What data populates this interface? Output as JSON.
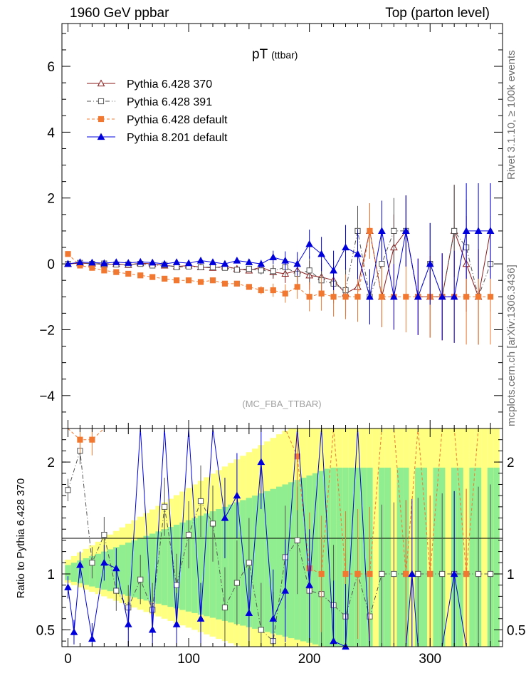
{
  "header": {
    "left": "1960 GeV ppbar",
    "right": "Top (parton level)"
  },
  "side_labels": {
    "rivet": "Rivet 3.1.10, ≥ 100k events",
    "mcplots": "mcplots.cern.ch [arXiv:1306.3436]"
  },
  "chart_data": [
    {
      "type": "line",
      "panel": "main",
      "title": "pT",
      "title_suffix": "(ttbar)",
      "analysis_label": "(MC_FBA_TTBAR)",
      "xlabel": "",
      "ylabel": "",
      "xlim": [
        -5,
        360
      ],
      "ylim": [
        -5,
        7.3
      ],
      "yticks": [
        6,
        4,
        2,
        0,
        -2,
        -4
      ],
      "ytick_labels": [
        "6",
        "4",
        "2",
        "0",
        "−2",
        "−4"
      ],
      "legend_position": "top-left",
      "series": [
        {
          "name": "Pythia 6.428 370",
          "color": "#8b1a1a",
          "marker": "open-triangle",
          "x": [
            0,
            10,
            20,
            30,
            40,
            50,
            60,
            70,
            80,
            90,
            100,
            110,
            120,
            130,
            140,
            150,
            160,
            170,
            180,
            190,
            200,
            210,
            220,
            230,
            240,
            250,
            260,
            270,
            280,
            290,
            300,
            310,
            320,
            330,
            340,
            350
          ],
          "y": [
            0.0,
            0.02,
            0.01,
            -0.02,
            0.0,
            -0.03,
            0.02,
            0.0,
            -0.05,
            -0.08,
            -0.05,
            -0.1,
            -0.12,
            -0.08,
            -0.15,
            -0.2,
            -0.1,
            -0.25,
            -0.3,
            -0.2,
            -0.35,
            -0.4,
            -0.5,
            -0.9,
            -0.7,
            1.0,
            -1.0,
            0.5,
            1.0,
            -1.0,
            -1.0,
            -1.0,
            1.0,
            0.0,
            -1.0,
            1.0
          ]
        },
        {
          "name": "Pythia 6.428 391",
          "color": "#555555",
          "marker": "open-square",
          "x": [
            0,
            10,
            20,
            30,
            40,
            50,
            60,
            70,
            80,
            90,
            100,
            110,
            120,
            130,
            140,
            150,
            160,
            170,
            180,
            190,
            200,
            210,
            220,
            230,
            240,
            250,
            260,
            270,
            280,
            290,
            300,
            310,
            320,
            330,
            340,
            350
          ],
          "y": [
            0.0,
            0.03,
            0.0,
            0.01,
            -0.02,
            -0.02,
            0.0,
            -0.05,
            -0.03,
            -0.1,
            -0.08,
            -0.1,
            -0.1,
            -0.12,
            -0.18,
            -0.15,
            -0.2,
            -0.22,
            -0.1,
            -0.3,
            -0.2,
            -0.5,
            -0.6,
            -0.8,
            1.0,
            -1.0,
            0.0,
            1.0,
            1.0,
            -1.0,
            0.0,
            -1.0,
            1.0,
            0.5,
            -1.0,
            0.0
          ]
        },
        {
          "name": "Pythia 6.428 default",
          "color": "#f07830",
          "marker": "filled-square",
          "x": [
            0,
            10,
            20,
            30,
            40,
            50,
            60,
            70,
            80,
            90,
            100,
            110,
            120,
            130,
            140,
            150,
            160,
            170,
            180,
            190,
            200,
            210,
            220,
            230,
            240,
            250,
            260,
            270,
            280,
            290,
            300,
            310,
            320,
            330,
            340,
            350
          ],
          "y": [
            0.3,
            -0.05,
            -0.12,
            -0.2,
            -0.25,
            -0.3,
            -0.35,
            -0.4,
            -0.45,
            -0.5,
            -0.5,
            -0.55,
            -0.5,
            -0.6,
            -0.6,
            -0.7,
            -0.8,
            -0.8,
            -0.9,
            -0.7,
            -1.0,
            -0.9,
            -1.0,
            -1.0,
            -1.0,
            1.0,
            -1.0,
            -1.0,
            -1.0,
            -1.0,
            -1.0,
            -1.0,
            -1.0,
            -1.0,
            -1.0,
            -1.0
          ]
        },
        {
          "name": "Pythia 8.201 default",
          "color": "#0000dd",
          "marker": "filled-triangle",
          "x": [
            0,
            10,
            20,
            30,
            40,
            50,
            60,
            70,
            80,
            90,
            100,
            110,
            120,
            130,
            140,
            150,
            160,
            170,
            180,
            190,
            200,
            210,
            220,
            230,
            240,
            250,
            260,
            270,
            280,
            290,
            300,
            310,
            320,
            330,
            340,
            350
          ],
          "y": [
            0.0,
            0.05,
            0.04,
            0.02,
            0.05,
            0.03,
            0.06,
            0.04,
            0.0,
            0.05,
            0.02,
            0.1,
            0.05,
            0.0,
            0.1,
            0.05,
            0.0,
            0.2,
            0.1,
            0.0,
            0.6,
            0.3,
            -0.2,
            0.5,
            0.3,
            -1.0,
            1.0,
            -1.0,
            1.0,
            -1.0,
            0.0,
            -1.0,
            -1.0,
            1.0,
            1.0,
            1.0
          ]
        }
      ]
    },
    {
      "type": "line",
      "panel": "ratio",
      "ylabel": "Ratio to Pythia 6.428 370",
      "xlabel": "",
      "xlim": [
        -5,
        360
      ],
      "ylim": [
        0.35,
        2.3
      ],
      "xticks": [
        0,
        100,
        200,
        300
      ],
      "yticks": [
        0.5,
        1,
        2
      ],
      "ytick_labels": [
        "0.5",
        "1",
        "2"
      ],
      "reference_line": 1,
      "band_colors": [
        "#ffff80",
        "#90ee90"
      ],
      "series": [
        {
          "name": "Pythia 6.428 391",
          "color": "#555555",
          "marker": "open-square",
          "x": [
            0,
            10,
            20,
            30,
            40,
            50,
            60,
            70,
            80,
            90,
            100,
            110,
            120,
            130,
            140,
            150,
            160,
            170,
            180,
            190,
            200,
            210,
            220,
            230,
            240,
            250,
            260,
            270,
            280,
            290,
            300,
            310,
            320,
            330,
            340,
            350
          ],
          "y": [
            1.75,
            2.1,
            1.1,
            1.35,
            0.85,
            0.7,
            0.95,
            0.68,
            1.6,
            0.9,
            1.35,
            1.65,
            1.45,
            0.7,
            0.92,
            1.1,
            0.5,
            0.4,
            1.15,
            1.3,
            0.85,
            0.82,
            0.72,
            0.62,
            1.0,
            0.62,
            1.0,
            1.0,
            1.0,
            1.0,
            1.0,
            1.0,
            1.0,
            1.0,
            1.0,
            1.0
          ]
        },
        {
          "name": "Pythia 6.428 default",
          "color": "#f07830",
          "marker": "filled-square",
          "x": [
            0,
            10,
            20,
            30,
            40,
            50,
            60,
            70,
            80,
            90,
            100,
            110,
            120,
            130,
            140,
            150,
            160,
            170,
            180,
            190,
            200,
            210,
            220,
            230,
            240,
            250,
            260,
            270,
            280,
            290,
            300,
            310,
            320,
            330,
            340,
            350
          ],
          "y": [
            2.4,
            2.2,
            2.2,
            2.3,
            2.3,
            2.3,
            2.3,
            2.3,
            2.3,
            2.3,
            2.3,
            2.3,
            2.3,
            2.3,
            2.3,
            2.3,
            2.3,
            2.3,
            2.3,
            2.05,
            1.05,
            1.0,
            2.3,
            1.0,
            1.0,
            1.0,
            2.3,
            2.3,
            1.0,
            2.3,
            1.0,
            2.3,
            2.3,
            1.0,
            2.3,
            2.3
          ]
        },
        {
          "name": "Pythia 8.201 default",
          "color": "#0000dd",
          "marker": "filled-triangle",
          "x": [
            0,
            5,
            10,
            20,
            30,
            40,
            50,
            60,
            70,
            80,
            90,
            100,
            110,
            120,
            130,
            140,
            150,
            160,
            170,
            180,
            190,
            200,
            210,
            220,
            230,
            240,
            250,
            260,
            270,
            280,
            285,
            290,
            300,
            310,
            320,
            330
          ],
          "y": [
            0.88,
            0.48,
            1.08,
            0.42,
            1.1,
            1.05,
            0.55,
            2.3,
            0.5,
            2.3,
            0.55,
            2.3,
            0.6,
            2.3,
            1.5,
            1.7,
            0.65,
            2.0,
            0.6,
            0.85,
            2.3,
            0.9,
            2.3,
            0.4,
            0.35,
            2.3,
            0.3,
            0.3,
            0.3,
            0.3,
            1.0,
            0.3,
            0.3,
            0.3,
            1.0,
            0.3
          ]
        }
      ]
    }
  ]
}
